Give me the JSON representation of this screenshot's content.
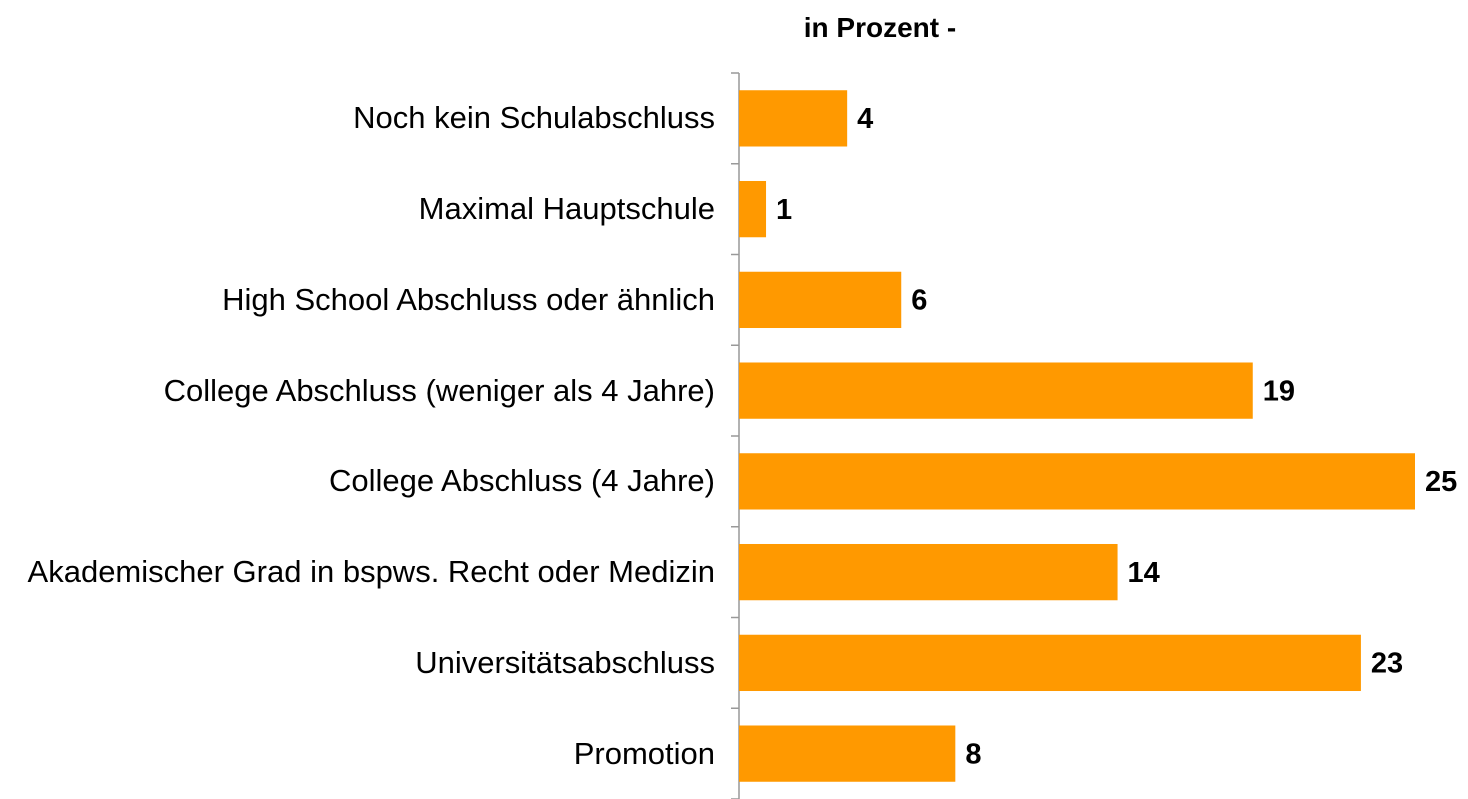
{
  "chart_data": {
    "type": "bar",
    "orientation": "horizontal",
    "title": "in Prozent -",
    "categories": [
      "Noch kein Schulabschluss",
      "Maximal Hauptschule",
      "High School Abschluss oder ähnlich",
      "College Abschluss (weniger als 4 Jahre)",
      "College Abschluss (4 Jahre)",
      "Akademischer Grad in bspws. Recht oder Medizin",
      "Universitätsabschluss",
      "Promotion"
    ],
    "values": [
      4,
      1,
      6,
      19,
      25,
      14,
      23,
      8
    ],
    "color": "#ff9900"
  }
}
